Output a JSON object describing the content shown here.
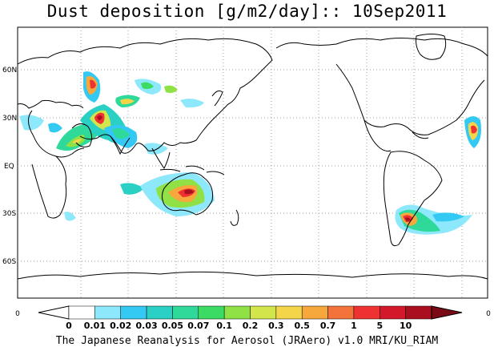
{
  "title": "Dust deposition [g/m2/day]:: 10Sep2011",
  "footer": "The Japanese Reanalysis for Aerosol (JRAero) v1.0 MRI/KU_RIAM",
  "lat_labels": [
    "60N",
    "30N",
    "EQ",
    "30S",
    "60S"
  ],
  "colorbar": {
    "left_end": "0",
    "right_end": "0",
    "labels": [
      "0",
      "0.01",
      "0.02",
      "0.03",
      "0.05",
      "0.07",
      "0.1",
      "0.2",
      "0.3",
      "0.5",
      "0.7",
      "1",
      "5",
      "10"
    ],
    "colors": [
      "#ffffff",
      "#8ee8fb",
      "#33c9f3",
      "#2ad0c3",
      "#2ed99a",
      "#3cdb63",
      "#8fe146",
      "#d2e54b",
      "#f4d54a",
      "#f6a83d",
      "#f3733a",
      "#ee3232",
      "#d2182a",
      "#a90f1f",
      "#7b0a17"
    ]
  },
  "map": {
    "projection": "equirectangular, centered 180",
    "lon_range": [
      0,
      360
    ],
    "lat_range": [
      -90,
      90
    ],
    "colors": {
      "land_outline": "#000000",
      "grid": "#a0a0a0"
    }
  }
}
